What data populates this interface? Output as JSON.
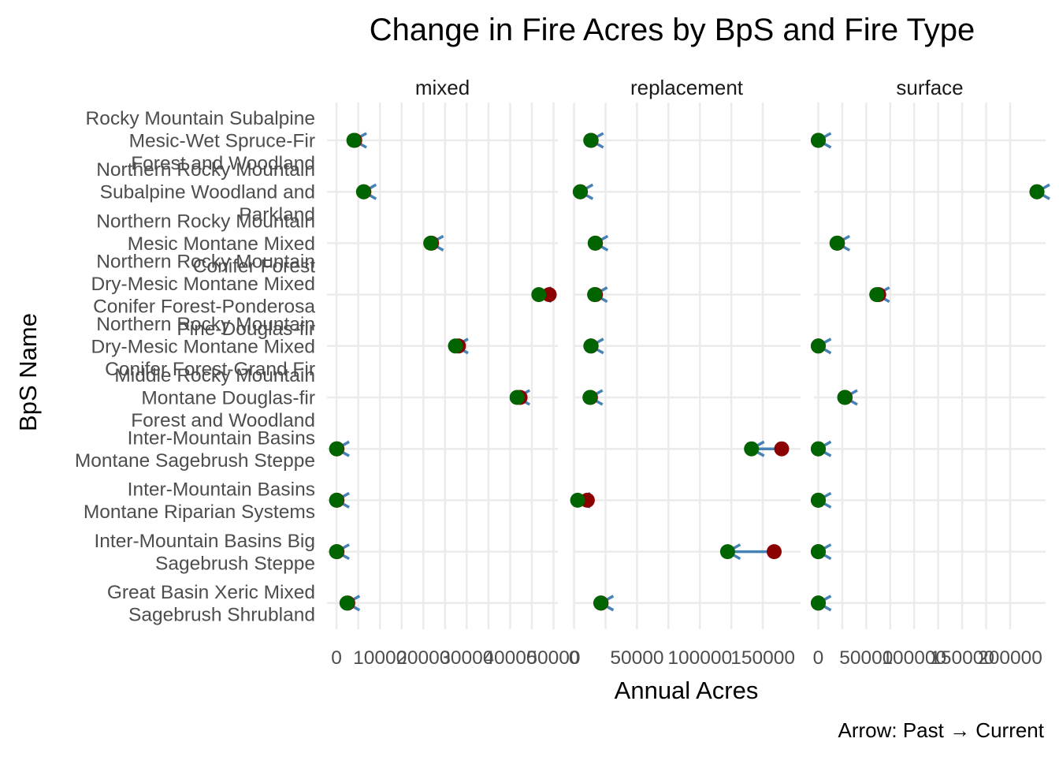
{
  "chart_data": {
    "type": "dumbbell",
    "title": "Change in Fire Acres by BpS and Fire Type",
    "xlabel": "Annual Acres",
    "ylabel": "BpS Name",
    "caption": "Arrow: Past → Current",
    "legend": "none",
    "grid": true,
    "colors": {
      "past": "#8B0000",
      "current": "#006400",
      "arrow": "#4682B4",
      "grid": "#EBEBEB"
    },
    "categories": [
      [
        "Rocky Mountain Subalpine",
        "Mesic-Wet Spruce-Fir",
        "Forest and Woodland"
      ],
      [
        "Northern Rocky Mountain",
        "Subalpine Woodland and",
        "Parkland"
      ],
      [
        "Northern Rocky Mountain",
        "Mesic Montane Mixed",
        "Conifer Forest"
      ],
      [
        "Northern Rocky Mountain",
        "Dry-Mesic Montane Mixed",
        "Conifer Forest-Ponderosa",
        "Pine-Douglas-fir"
      ],
      [
        "Northern Rocky Mountain",
        "Dry-Mesic Montane Mixed",
        "Conifer Forest-Grand Fir"
      ],
      [
        "Middle Rocky Mountain",
        "Montane Douglas-fir",
        "Forest and Woodland"
      ],
      [
        "Inter-Mountain Basins",
        "Montane Sagebrush Steppe"
      ],
      [
        "Inter-Mountain Basins",
        "Montane Riparian Systems"
      ],
      [
        "Inter-Mountain Basins Big",
        "Sagebrush Steppe"
      ],
      [
        "Great Basin Xeric Mixed",
        "Sagebrush Shrubland"
      ]
    ],
    "facets": [
      {
        "name": "mixed",
        "xlim": [
          -2200,
          51000
        ],
        "ticks": [
          0,
          10000,
          20000,
          30000,
          40000,
          50000
        ],
        "tick_labels": [
          "0",
          "10000",
          "20000",
          "30000",
          "40000",
          "50000"
        ],
        "past": [
          4200,
          6300,
          21900,
          49000,
          28100,
          42300,
          100,
          100,
          100,
          2600
        ],
        "current": [
          4000,
          6200,
          21700,
          46600,
          27400,
          41600,
          0,
          0,
          0,
          2400
        ]
      },
      {
        "name": "replacement",
        "xlim": [
          -1000,
          180000
        ],
        "ticks": [
          0,
          50000,
          100000,
          150000
        ],
        "tick_labels": [
          "0",
          "50000",
          "100000",
          "150000"
        ],
        "past": [
          13500,
          5000,
          17000,
          17000,
          13500,
          13000,
          165000,
          10500,
          159000,
          21500
        ],
        "current": [
          13200,
          4800,
          16700,
          16300,
          13300,
          12600,
          141000,
          2800,
          122000,
          21200
        ]
      },
      {
        "name": "surface",
        "xlim": [
          -4500,
          237000
        ],
        "ticks": [
          0,
          50000,
          100000,
          150000,
          200000
        ],
        "tick_labels": [
          "0",
          "50000",
          "100000",
          "150000",
          "200000"
        ],
        "past": [
          0,
          228000,
          20000,
          63000,
          0,
          28000,
          0,
          0,
          0,
          0
        ],
        "current": [
          0,
          228000,
          19500,
          61000,
          0,
          27500,
          0,
          0,
          0,
          0
        ]
      }
    ]
  }
}
